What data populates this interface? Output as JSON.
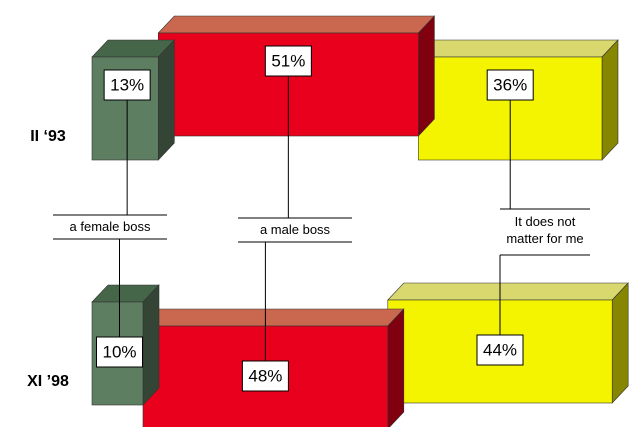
{
  "chart_data": {
    "type": "bar3d-stacked",
    "categories": [
      "II ‘93",
      "XI ’98"
    ],
    "series": [
      {
        "name": "a female boss",
        "color": "#5e7e62",
        "values": [
          13,
          10
        ],
        "value_labels": [
          "13%",
          "10%"
        ]
      },
      {
        "name": "a male boss",
        "color": "#e8001c",
        "values": [
          51,
          48
        ],
        "value_labels": [
          "51%",
          "48%"
        ]
      },
      {
        "name": "It does not matter for me",
        "color": "#f4f400",
        "values": [
          36,
          44
        ],
        "value_labels": [
          "36%",
          "44%"
        ]
      }
    ]
  }
}
